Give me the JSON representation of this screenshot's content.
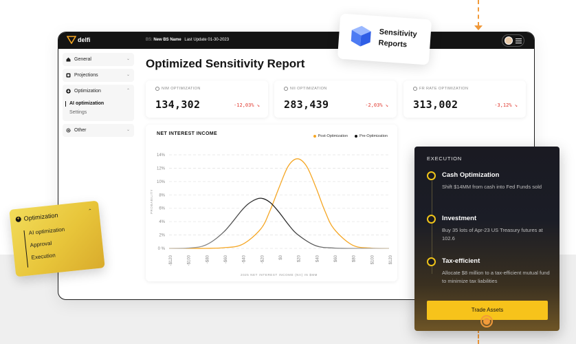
{
  "topbar": {
    "logo_text": "delfi",
    "bs_prefix": "BS:",
    "bs_name": "New BS Name",
    "last_update": "Last Update 01-30-2023"
  },
  "sidebar": {
    "items": [
      {
        "label": "General",
        "icon": "home-icon"
      },
      {
        "label": "Projections",
        "icon": "projections-icon"
      }
    ],
    "optimization": {
      "label": "Optimization",
      "icon": "plus-circle-icon",
      "sub_items": [
        {
          "label": "AI optimization",
          "active": true
        },
        {
          "label": "Settings",
          "active": false
        }
      ]
    },
    "other": {
      "label": "Other",
      "icon": "gear-icon"
    }
  },
  "page": {
    "title": "Optimized Sensitivity Report"
  },
  "kpis": [
    {
      "label": "NIM OPTIMIZATION",
      "value": "134,302",
      "change": "-12,03%"
    },
    {
      "label": "NII OPTIMIZATION",
      "value": "283,439",
      "change": "-2,03%"
    },
    {
      "label": "FR RATE OPTIMIZATION",
      "value": "313,002",
      "change": "-3,12%"
    }
  ],
  "chart_data": {
    "type": "line",
    "title": "NET INTEREST INCOME",
    "xlabel": "2025 NET INTEREST INCOME (NII) IN $MM",
    "ylabel": "PROBABILITY",
    "x_ticks": [
      "-$120",
      "-$100",
      "-$80",
      "-$60",
      "-$40",
      "-$20",
      "$0",
      "$20",
      "$40",
      "$60",
      "$80",
      "$100",
      "$120"
    ],
    "y_ticks": [
      "0 %",
      "2%",
      "4%",
      "6%",
      "8%",
      "10%",
      "12%",
      "14%"
    ],
    "xlim": [
      -120,
      120
    ],
    "ylim": [
      0,
      14
    ],
    "series": [
      {
        "name": "Post-Optimization",
        "color": "#f5a623",
        "x": [
          -120,
          -100,
          -80,
          -60,
          -40,
          -20,
          -10,
          0,
          10,
          20,
          30,
          40,
          50,
          60,
          80,
          100,
          120
        ],
        "y": [
          0,
          0,
          0,
          0.1,
          0.6,
          2.9,
          5.6,
          9.1,
          12.3,
          13.4,
          12.3,
          9.2,
          5.6,
          2.9,
          0.5,
          0.05,
          0
        ]
      },
      {
        "name": "Pre-Optimization",
        "color": "#141414",
        "x": [
          -120,
          -100,
          -80,
          -60,
          -40,
          -30,
          -20,
          -10,
          0,
          10,
          20,
          40,
          60,
          80,
          100,
          120
        ],
        "y": [
          0,
          0.05,
          0.5,
          2.5,
          5.8,
          7.0,
          7.5,
          6.9,
          5.4,
          3.6,
          2.1,
          0.4,
          0.05,
          0,
          0,
          0
        ]
      }
    ],
    "grid": true,
    "legend_position": "top-right"
  },
  "sens_card": {
    "title_line1": "Sensitivity",
    "title_line2": "Reports"
  },
  "opt_card": {
    "title": "Optimization",
    "items": [
      "AI optimization",
      "Approval",
      "Execution"
    ]
  },
  "execution": {
    "title": "EXECUTION",
    "steps": [
      {
        "title": "Cash Optimization",
        "desc": "Shift $14MM from cash into Fed Funds sold"
      },
      {
        "title": "Investment",
        "desc": "Buy 35 lots of Apr-23 US Treasury futures at 102.6"
      },
      {
        "title": "Tax-efficient",
        "desc": "Allocate $8 million to a tax-efficient mutual fund to minimize tax liabilities"
      }
    ],
    "button_label": "Trade Assets"
  }
}
